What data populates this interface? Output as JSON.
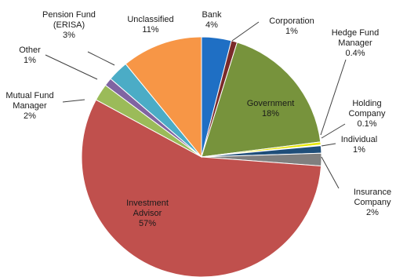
{
  "chart_data": {
    "type": "pie",
    "title": "",
    "start_angle_deg": 0,
    "direction": "clockwise",
    "legend": "none",
    "slices": [
      {
        "label": [
          "Bank"
        ],
        "pct_text": "4%",
        "value": 4.0,
        "color": "#1f6fc4"
      },
      {
        "label": [
          "Corporation"
        ],
        "pct_text": "1%",
        "value": 0.8,
        "color": "#7a2a2a"
      },
      {
        "label": [
          "Government"
        ],
        "pct_text": "18%",
        "value": 18.2,
        "color": "#77933c"
      },
      {
        "label": [
          "Hedge Fund",
          "Manager"
        ],
        "pct_text": "0.4%",
        "value": 0.4,
        "color": "#e6e600"
      },
      {
        "label": [
          "Holding",
          "Company"
        ],
        "pct_text": "0.1%",
        "value": 0.1,
        "color": "#4aacc6"
      },
      {
        "label": [
          "Individual"
        ],
        "pct_text": "1%",
        "value": 1.0,
        "color": "#1f4e79"
      },
      {
        "label": [
          "Insurance",
          "Company"
        ],
        "pct_text": "2%",
        "value": 1.7,
        "color": "#7f7f7f"
      },
      {
        "label": [
          "Investment",
          "Advisor"
        ],
        "pct_text": "57%",
        "value": 56.7,
        "color": "#c0504d"
      },
      {
        "label": [
          "Mutual Fund",
          "Manager"
        ],
        "pct_text": "2%",
        "value": 2.3,
        "color": "#9bbb59"
      },
      {
        "label": [
          "Other"
        ],
        "pct_text": "1%",
        "value": 1.1,
        "color": "#8064a2"
      },
      {
        "label": [
          "Pension Fund",
          "(ERISA)"
        ],
        "pct_text": "3%",
        "value": 2.8,
        "color": "#4bacc6"
      },
      {
        "label": [
          "Unclassified"
        ],
        "pct_text": "11%",
        "value": 10.9,
        "color": "#f79646"
      }
    ]
  }
}
